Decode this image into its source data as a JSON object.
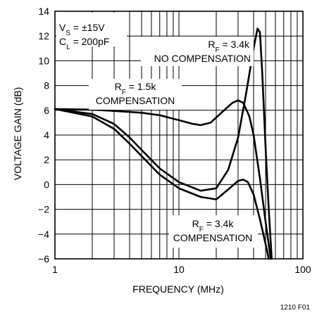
{
  "chart_data": {
    "type": "line",
    "xlabel": "FREQUENCY (MHz)",
    "ylabel": "VOLTAGE GAIN (dB)",
    "x_scale": "log",
    "xlim": [
      1,
      100
    ],
    "ylim": [
      -6,
      14
    ],
    "x_ticks": [
      1,
      10,
      100
    ],
    "y_ticks": [
      -6,
      -4,
      -2,
      0,
      2,
      4,
      6,
      8,
      10,
      12,
      14
    ],
    "grid": true,
    "conditions": [
      "V_S = ±15V",
      "C_L = 200pF"
    ],
    "figure_id": "1210 F01",
    "series": [
      {
        "label": [
          "R_F = 3.4k",
          "NO COMPENSATION"
        ],
        "points": [
          [
            1,
            6.1
          ],
          [
            2,
            5.7
          ],
          [
            3,
            4.9
          ],
          [
            4,
            3.8
          ],
          [
            5,
            2.8
          ],
          [
            7,
            1.3
          ],
          [
            10,
            0.2
          ],
          [
            15,
            -0.5
          ],
          [
            20,
            -0.3
          ],
          [
            25,
            1.2
          ],
          [
            30,
            3.8
          ],
          [
            35,
            7.5
          ],
          [
            40,
            11.0
          ],
          [
            43,
            12.6
          ],
          [
            45,
            12.3
          ],
          [
            47,
            9.0
          ],
          [
            50,
            3.0
          ],
          [
            53,
            -2.0
          ],
          [
            56,
            -6.0
          ]
        ]
      },
      {
        "label": [
          "R_F = 1.5k",
          "COMPENSATION"
        ],
        "points": [
          [
            1,
            6.1
          ],
          [
            2,
            6.05
          ],
          [
            3,
            5.95
          ],
          [
            5,
            5.8
          ],
          [
            7,
            5.6
          ],
          [
            10,
            5.2
          ],
          [
            13,
            4.9
          ],
          [
            15,
            4.8
          ],
          [
            18,
            5.0
          ],
          [
            22,
            5.8
          ],
          [
            27,
            6.6
          ],
          [
            30,
            6.8
          ],
          [
            33,
            6.6
          ],
          [
            37,
            5.5
          ],
          [
            40,
            4.0
          ],
          [
            45,
            0.5
          ],
          [
            50,
            -3.0
          ],
          [
            55,
            -6.0
          ]
        ]
      },
      {
        "label": [
          "R_F = 3.4k",
          "COMPENSATION"
        ],
        "points": [
          [
            1,
            6.1
          ],
          [
            2,
            5.5
          ],
          [
            3,
            4.5
          ],
          [
            4,
            3.3
          ],
          [
            5,
            2.3
          ],
          [
            7,
            0.8
          ],
          [
            10,
            -0.3
          ],
          [
            15,
            -1.0
          ],
          [
            20,
            -1.2
          ],
          [
            25,
            -0.4
          ],
          [
            30,
            0.3
          ],
          [
            33,
            0.4
          ],
          [
            36,
            0.2
          ],
          [
            40,
            -0.8
          ],
          [
            45,
            -2.8
          ],
          [
            50,
            -4.8
          ],
          [
            53,
            -6.0
          ]
        ]
      }
    ]
  }
}
